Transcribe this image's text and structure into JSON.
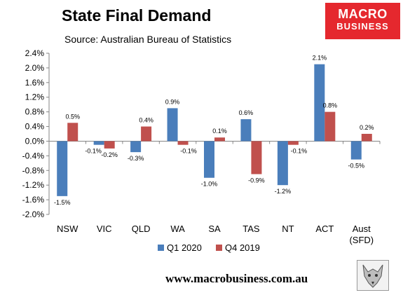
{
  "header": {
    "title": "State Final Demand",
    "source": "Source: Australian Bureau of Statistics"
  },
  "logo": {
    "line1": "MACRO",
    "line2": "BUSINESS",
    "color": "#e5282e"
  },
  "footer": {
    "website": "www.macrobusiness.com.au",
    "emblem": "wolf-logo-icon"
  },
  "chart_data": {
    "type": "bar",
    "categories": [
      "NSW",
      "VIC",
      "QLD",
      "WA",
      "SA",
      "TAS",
      "NT",
      "ACT",
      "Aust\n(SFD)"
    ],
    "series": [
      {
        "name": "Q1 2020",
        "color": "#4a7ebb",
        "values": [
          -1.5,
          -0.1,
          -0.3,
          0.9,
          -1.0,
          0.6,
          -1.2,
          2.1,
          -0.5
        ],
        "labels": [
          "-1.5%",
          "-0.1%",
          "-0.3%",
          "0.9%",
          "-1.0%",
          "0.6%",
          "-1.2%",
          "2.1%",
          "-0.5%"
        ]
      },
      {
        "name": "Q4 2019",
        "color": "#c0504d",
        "values": [
          0.5,
          -0.2,
          0.4,
          -0.1,
          0.1,
          -0.9,
          -0.1,
          0.8,
          0.2
        ],
        "labels": [
          "0.5%",
          "-0.2%",
          "0.4%",
          "-0.1%",
          "0.1%",
          "-0.9%",
          "-0.1%",
          "0.8%",
          "0.2%"
        ]
      }
    ],
    "yticks": [
      "2.4%",
      "2.0%",
      "1.6%",
      "1.2%",
      "0.8%",
      "0.4%",
      "0.0%",
      "-0.4%",
      "-0.8%",
      "-1.2%",
      "-1.6%",
      "-2.0%"
    ],
    "ylim": [
      -2.0,
      2.4
    ],
    "grid": false,
    "legend": "bottom"
  }
}
